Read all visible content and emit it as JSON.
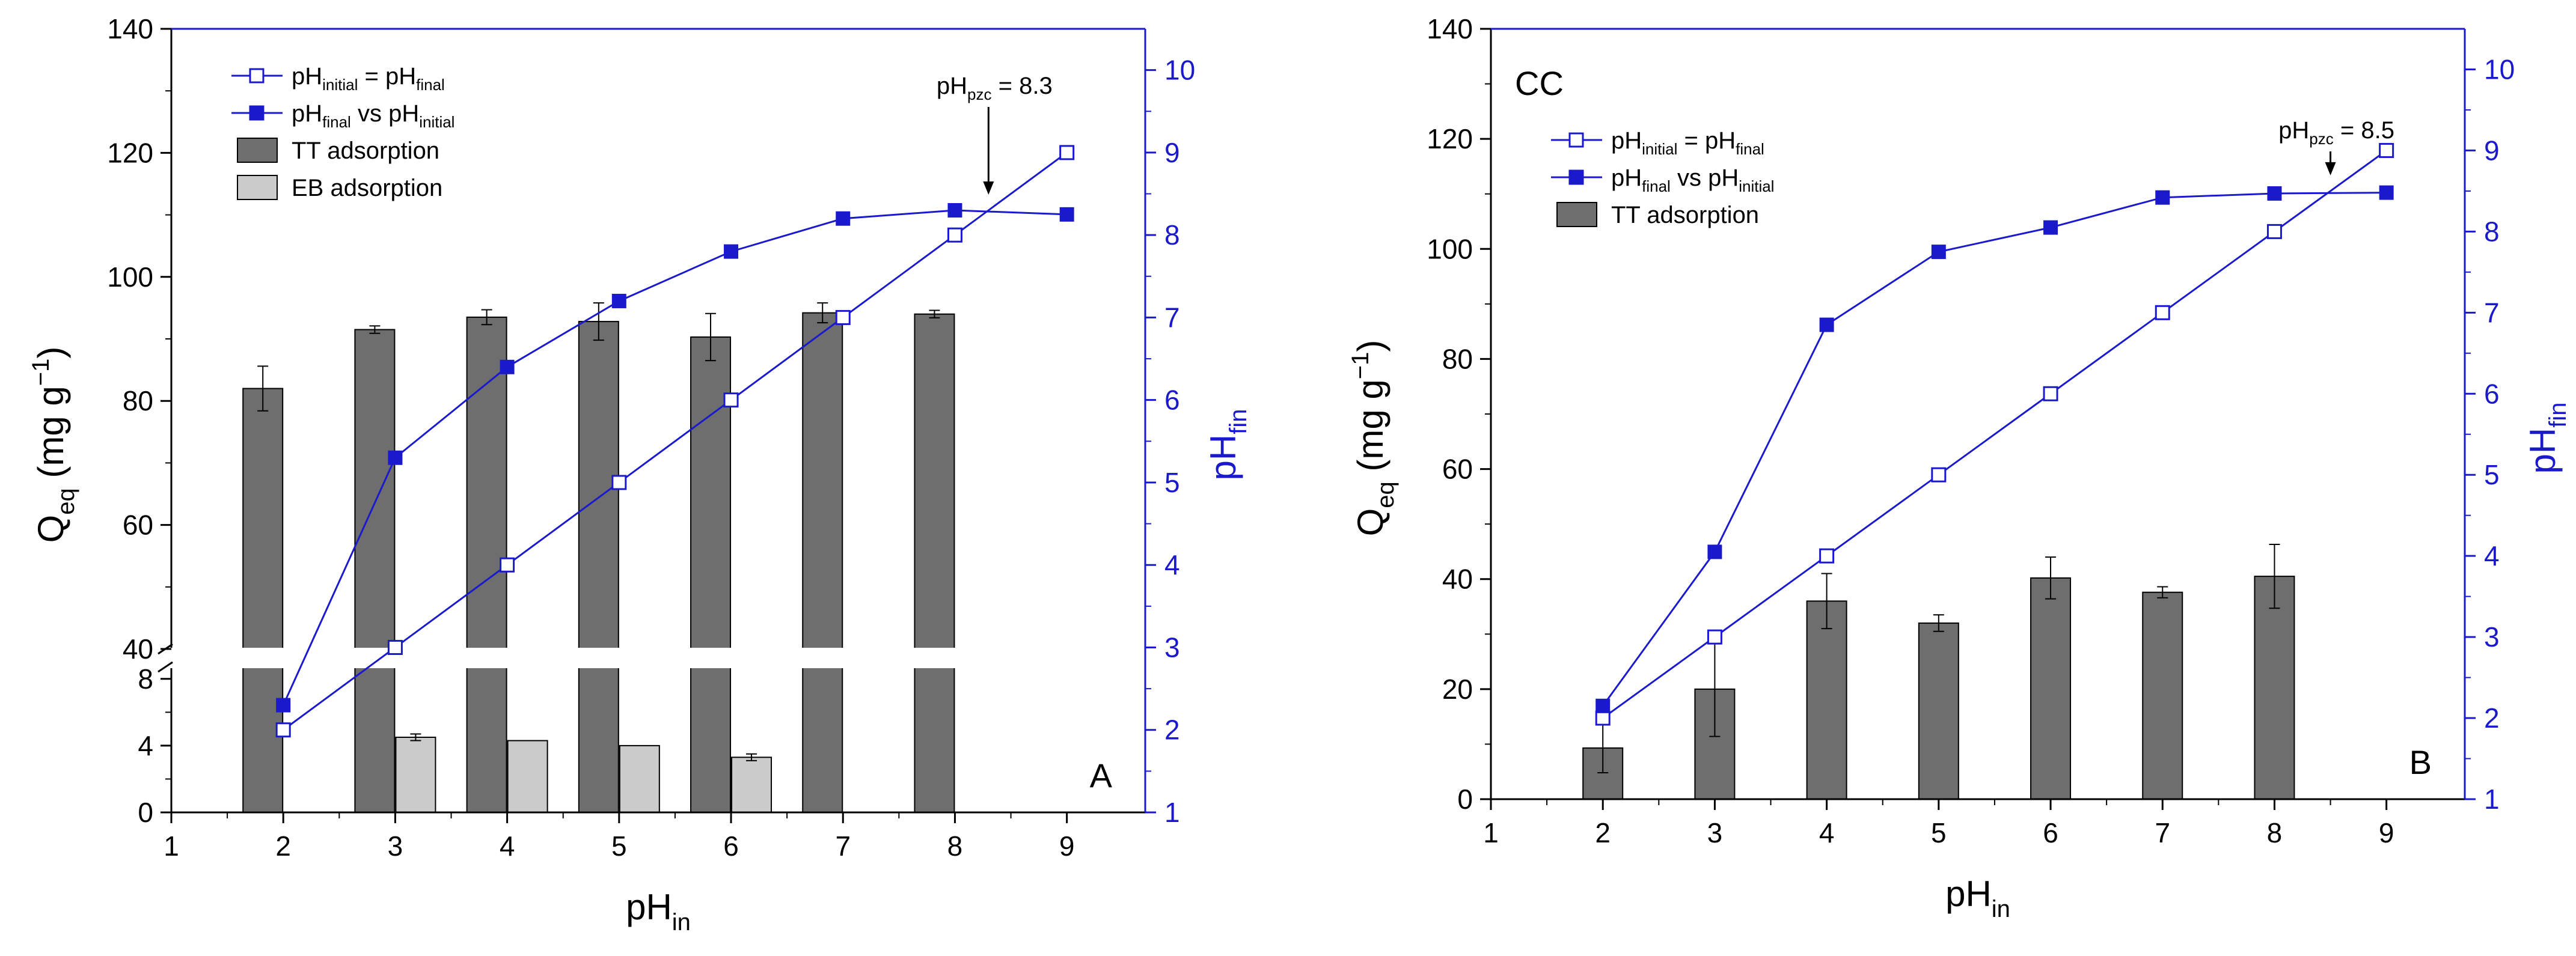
{
  "chart_data": [
    {
      "type": "bar",
      "panel_letter": "A",
      "xlabel": "pH",
      "xlabel_sub": "in",
      "ylabel": "Q",
      "ylabel_sub": "eq",
      "ylabel_units": "(mg g",
      "ylabel_exp": "−1",
      "ylabel_close": ")",
      "y2label": "pH",
      "y2label_sub": "fin",
      "x_ticks": [
        "1",
        "2",
        "3",
        "4",
        "5",
        "6",
        "7",
        "8",
        "9"
      ],
      "xlim": [
        1,
        9.7
      ],
      "y_axis_break": true,
      "ylim_lower": [
        0,
        9
      ],
      "y_ticks_lower": [
        "0",
        "4",
        "8"
      ],
      "ylim_upper": [
        40,
        140
      ],
      "y_ticks_upper": [
        "40",
        "60",
        "80",
        "100",
        "120",
        "140"
      ],
      "y2lim": [
        1,
        10.5
      ],
      "y2_ticks": [
        "1",
        "2",
        "3",
        "4",
        "5",
        "6",
        "7",
        "8",
        "9",
        "10"
      ],
      "legend": [
        {
          "kind": "open-line",
          "main": "pH",
          "sub1": "initial",
          "mid": " = pH",
          "sub2": "final"
        },
        {
          "kind": "filled-line",
          "main": "pH",
          "sub1": "final",
          "mid": " vs pH",
          "sub2": "initial"
        },
        {
          "kind": "bar-dark",
          "main": "TT adsorption"
        },
        {
          "kind": "bar-light",
          "main": "EB adsorption"
        }
      ],
      "annotation": {
        "main": "pH",
        "sub": "pzc",
        "rest": " = 8.3",
        "arrow_x": 8.3,
        "arrow_y2": 8.3
      },
      "bar_series": [
        {
          "name": "TT adsorption",
          "color": "#6e6e6e",
          "x": [
            2,
            3,
            4,
            5,
            6,
            7,
            8
          ],
          "values": [
            82,
            91.5,
            93.5,
            92.8,
            90.3,
            94.2,
            94
          ],
          "errors": [
            3.6,
            0.6,
            1.2,
            3.0,
            3.8,
            1.6,
            0.6
          ]
        },
        {
          "name": "EB adsorption",
          "color": "#cbcbcb",
          "x": [
            3,
            4,
            5,
            6
          ],
          "values": [
            4.5,
            4.3,
            4.0,
            3.3
          ],
          "errors": [
            0.2,
            0,
            0,
            0.2
          ]
        }
      ],
      "line_series": [
        {
          "name": "pH initial = pH final",
          "marker": "open-square",
          "color": "#1a1acc",
          "x": [
            2,
            3,
            4,
            5,
            6,
            7,
            8,
            9
          ],
          "y2": [
            2,
            3,
            4,
            5,
            6,
            7,
            8,
            9
          ]
        },
        {
          "name": "pH final vs pH initial",
          "marker": "filled-square",
          "color": "#1a1acc",
          "x": [
            2,
            3,
            4,
            5,
            6,
            7,
            8,
            9
          ],
          "y2": [
            2.3,
            5.3,
            6.4,
            7.2,
            7.8,
            8.2,
            8.3,
            8.25
          ]
        }
      ]
    },
    {
      "type": "bar",
      "panel_letter": "B",
      "panel_label": "CC",
      "xlabel": "pH",
      "xlabel_sub": "in",
      "ylabel": "Q",
      "ylabel_sub": "eq",
      "ylabel_units": "(mg g",
      "ylabel_exp": "−1",
      "ylabel_close": ")",
      "y2label": "pH",
      "y2label_sub": "fin",
      "x_ticks": [
        "1",
        "2",
        "3",
        "4",
        "5",
        "6",
        "7",
        "8",
        "9"
      ],
      "xlim": [
        1,
        9.7
      ],
      "y_axis_break": false,
      "ylim": [
        0,
        140
      ],
      "y_ticks": [
        "0",
        "20",
        "40",
        "60",
        "80",
        "100",
        "120",
        "140"
      ],
      "y2lim": [
        1,
        10.5
      ],
      "y2_ticks": [
        "1",
        "2",
        "3",
        "4",
        "5",
        "6",
        "7",
        "8",
        "9",
        "10"
      ],
      "legend": [
        {
          "kind": "open-line",
          "main": "pH",
          "sub1": "initial",
          "mid": " = pH",
          "sub2": "final"
        },
        {
          "kind": "filled-line",
          "main": "pH",
          "sub1": "final",
          "mid": " vs pH",
          "sub2": "initial"
        },
        {
          "kind": "bar-dark",
          "main": "TT adsorption"
        }
      ],
      "annotation": {
        "main": "pH",
        "sub": "pzc",
        "rest": " = 8.5",
        "arrow_x": 8.5,
        "arrow_y2": 8.5
      },
      "bar_series": [
        {
          "name": "TT adsorption",
          "color": "#6e6e6e",
          "x": [
            2,
            3,
            4,
            5,
            6,
            7,
            8
          ],
          "values": [
            9.3,
            20,
            36,
            32,
            40.2,
            37.6,
            40.5
          ],
          "errors": [
            4.5,
            8.6,
            5.0,
            1.5,
            3.8,
            1.0,
            5.8
          ]
        }
      ],
      "line_series": [
        {
          "name": "pH initial = pH final",
          "marker": "open-square",
          "color": "#1a1acc",
          "x": [
            2,
            3,
            4,
            5,
            6,
            7,
            8,
            9
          ],
          "y2": [
            2,
            3,
            4,
            5,
            6,
            7,
            8,
            9
          ]
        },
        {
          "name": "pH final vs pH initial",
          "marker": "filled-square",
          "color": "#1a1acc",
          "x": [
            2,
            3,
            4,
            5,
            6,
            7,
            8,
            9
          ],
          "y2": [
            2.15,
            4.05,
            6.85,
            7.75,
            8.05,
            8.42,
            8.47,
            8.48
          ]
        }
      ]
    }
  ]
}
